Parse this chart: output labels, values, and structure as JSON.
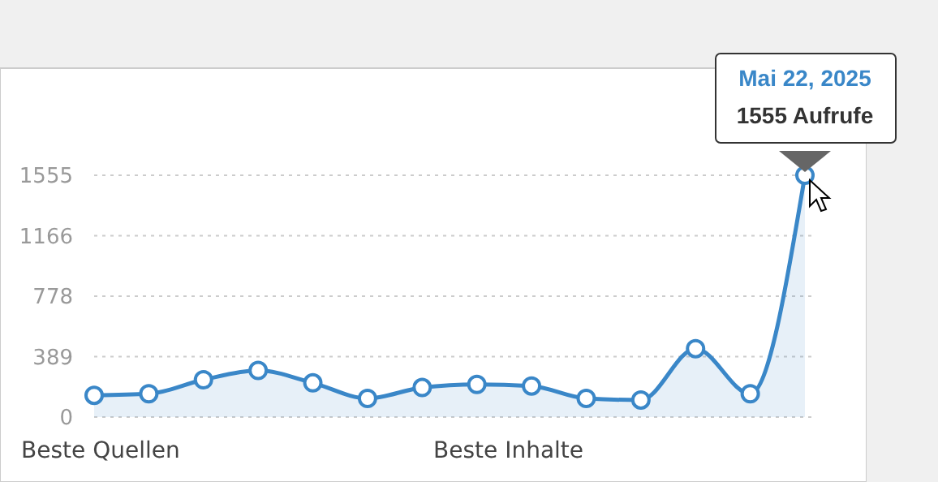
{
  "chart_data": {
    "type": "area",
    "categories": [
      null,
      null,
      null,
      null,
      null,
      null,
      null,
      null,
      null,
      null,
      null,
      null,
      null,
      null
    ],
    "series": [
      {
        "color": "#3a87c8",
        "values": [
          140,
          150,
          240,
          300,
          220,
          120,
          190,
          210,
          200,
          120,
          110,
          440,
          150,
          1555
        ]
      }
    ],
    "ylim": [
      0,
      1555
    ],
    "yticks": [
      0,
      389,
      778,
      1166,
      1555
    ],
    "grid": "y",
    "marker": "circle",
    "line_style": "solid",
    "annotations": [
      "Mai 22, 2025",
      "1555 Aufrufe",
      "Beste Quellen",
      "Beste Inhalte"
    ]
  }
}
